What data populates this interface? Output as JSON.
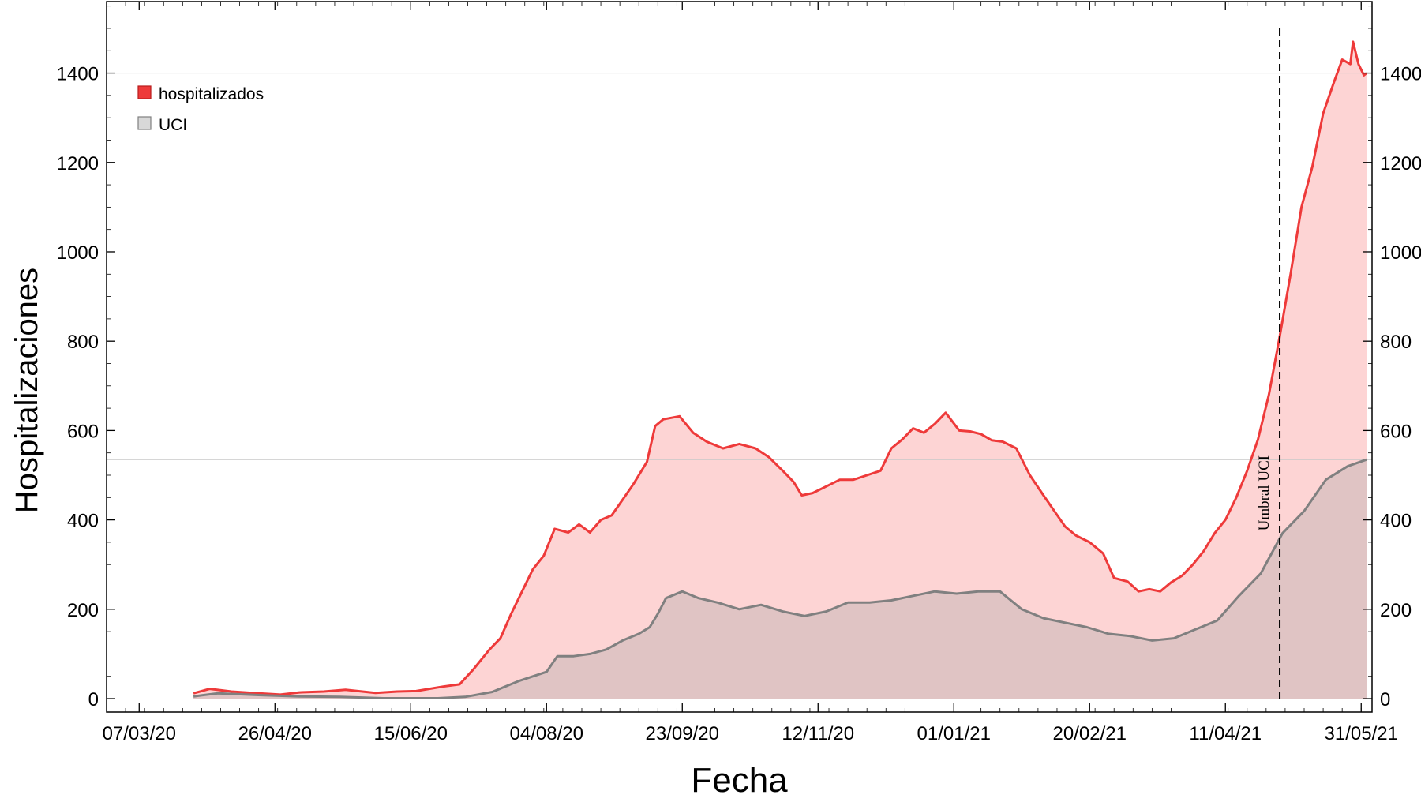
{
  "chart_data": {
    "type": "area",
    "xlabel": "Fecha",
    "ylabel": "Hospitalizaciones",
    "x_axis": {
      "kind": "date",
      "domain": [
        "2020-02-24",
        "2021-06-04"
      ],
      "ticks": [
        "07/03/20",
        "26/04/20",
        "15/06/20",
        "04/08/20",
        "23/09/20",
        "12/11/20",
        "01/01/21",
        "20/02/21",
        "11/04/21",
        "31/05/21"
      ]
    },
    "y_axis": {
      "range": [
        -30,
        1560
      ],
      "ticks": [
        "0",
        "200",
        "400",
        "600",
        "800",
        "1000",
        "1200",
        "1400"
      ],
      "mirrored_right": true
    },
    "grid": false,
    "reference_lines": [
      1400,
      535
    ],
    "legend": {
      "position": "top-left",
      "entries": [
        "hospitalizados",
        "UCI"
      ]
    },
    "annotation": {
      "text": "Umbral UCI",
      "date": "2021-05-01",
      "style": "dashed vertical line"
    },
    "series": [
      {
        "name": "hospitalizados",
        "color": "#ee3a3a",
        "fill": "#fdd4d4",
        "points": [
          [
            "2020-03-27",
            12
          ],
          [
            "2020-04-02",
            22
          ],
          [
            "2020-04-10",
            16
          ],
          [
            "2020-04-20",
            12
          ],
          [
            "2020-04-28",
            9
          ],
          [
            "2020-05-05",
            14
          ],
          [
            "2020-05-14",
            16
          ],
          [
            "2020-05-22",
            20
          ],
          [
            "2020-06-02",
            13
          ],
          [
            "2020-06-10",
            16
          ],
          [
            "2020-06-17",
            17
          ],
          [
            "2020-06-27",
            27
          ],
          [
            "2020-07-03",
            32
          ],
          [
            "2020-07-08",
            65
          ],
          [
            "2020-07-14",
            110
          ],
          [
            "2020-07-18",
            135
          ],
          [
            "2020-07-22",
            190
          ],
          [
            "2020-07-26",
            240
          ],
          [
            "2020-07-30",
            290
          ],
          [
            "2020-08-03",
            320
          ],
          [
            "2020-08-07",
            380
          ],
          [
            "2020-08-12",
            372
          ],
          [
            "2020-08-16",
            390
          ],
          [
            "2020-08-20",
            372
          ],
          [
            "2020-08-24",
            400
          ],
          [
            "2020-08-28",
            410
          ],
          [
            "2020-09-01",
            445
          ],
          [
            "2020-09-05",
            480
          ],
          [
            "2020-09-10",
            530
          ],
          [
            "2020-09-13",
            610
          ],
          [
            "2020-09-16",
            625
          ],
          [
            "2020-09-22",
            632
          ],
          [
            "2020-09-27",
            595
          ],
          [
            "2020-10-02",
            575
          ],
          [
            "2020-10-08",
            560
          ],
          [
            "2020-10-14",
            570
          ],
          [
            "2020-10-20",
            560
          ],
          [
            "2020-10-25",
            540
          ],
          [
            "2020-10-30",
            510
          ],
          [
            "2020-11-03",
            485
          ],
          [
            "2020-11-06",
            455
          ],
          [
            "2020-11-10",
            460
          ],
          [
            "2020-11-15",
            475
          ],
          [
            "2020-11-20",
            490
          ],
          [
            "2020-11-25",
            490
          ],
          [
            "2020-11-30",
            500
          ],
          [
            "2020-12-05",
            510
          ],
          [
            "2020-12-09",
            560
          ],
          [
            "2020-12-13",
            580
          ],
          [
            "2020-12-17",
            605
          ],
          [
            "2020-12-21",
            595
          ],
          [
            "2020-12-25",
            615
          ],
          [
            "2020-12-29",
            640
          ],
          [
            "2021-01-03",
            600
          ],
          [
            "2021-01-07",
            598
          ],
          [
            "2021-01-11",
            592
          ],
          [
            "2021-01-15",
            578
          ],
          [
            "2021-01-19",
            575
          ],
          [
            "2021-01-24",
            560
          ],
          [
            "2021-01-29",
            500
          ],
          [
            "2021-02-03",
            455
          ],
          [
            "2021-02-07",
            420
          ],
          [
            "2021-02-11",
            385
          ],
          [
            "2021-02-15",
            365
          ],
          [
            "2021-02-20",
            350
          ],
          [
            "2021-02-25",
            325
          ],
          [
            "2021-03-01",
            270
          ],
          [
            "2021-03-06",
            262
          ],
          [
            "2021-03-10",
            240
          ],
          [
            "2021-03-14",
            245
          ],
          [
            "2021-03-18",
            240
          ],
          [
            "2021-03-22",
            260
          ],
          [
            "2021-03-26",
            275
          ],
          [
            "2021-03-30",
            300
          ],
          [
            "2021-04-03",
            330
          ],
          [
            "2021-04-07",
            370
          ],
          [
            "2021-04-11",
            400
          ],
          [
            "2021-04-15",
            450
          ],
          [
            "2021-04-19",
            510
          ],
          [
            "2021-04-23",
            580
          ],
          [
            "2021-04-27",
            680
          ],
          [
            "2021-05-01",
            810
          ],
          [
            "2021-05-05",
            950
          ],
          [
            "2021-05-09",
            1100
          ],
          [
            "2021-05-13",
            1190
          ],
          [
            "2021-05-17",
            1310
          ],
          [
            "2021-05-21",
            1380
          ],
          [
            "2021-05-24",
            1430
          ],
          [
            "2021-05-27",
            1420
          ],
          [
            "2021-05-28",
            1470
          ],
          [
            "2021-05-30",
            1420
          ],
          [
            "2021-06-01",
            1395
          ],
          [
            "2021-06-02",
            1400
          ]
        ]
      },
      {
        "name": "UCI",
        "color": "#808080",
        "fill": "#e0c4c4",
        "points": [
          [
            "2020-03-27",
            5
          ],
          [
            "2020-04-05",
            12
          ],
          [
            "2020-04-20",
            8
          ],
          [
            "2020-05-05",
            5
          ],
          [
            "2020-05-20",
            4
          ],
          [
            "2020-06-05",
            1
          ],
          [
            "2020-06-25",
            1
          ],
          [
            "2020-07-05",
            4
          ],
          [
            "2020-07-15",
            15
          ],
          [
            "2020-07-25",
            40
          ],
          [
            "2020-08-04",
            60
          ],
          [
            "2020-08-08",
            95
          ],
          [
            "2020-08-14",
            95
          ],
          [
            "2020-08-20",
            100
          ],
          [
            "2020-08-26",
            110
          ],
          [
            "2020-09-01",
            130
          ],
          [
            "2020-09-07",
            145
          ],
          [
            "2020-09-11",
            160
          ],
          [
            "2020-09-14",
            190
          ],
          [
            "2020-09-17",
            225
          ],
          [
            "2020-09-23",
            240
          ],
          [
            "2020-09-29",
            225
          ],
          [
            "2020-10-06",
            215
          ],
          [
            "2020-10-14",
            200
          ],
          [
            "2020-10-22",
            210
          ],
          [
            "2020-10-30",
            195
          ],
          [
            "2020-11-07",
            185
          ],
          [
            "2020-11-15",
            195
          ],
          [
            "2020-11-23",
            215
          ],
          [
            "2020-12-01",
            215
          ],
          [
            "2020-12-09",
            220
          ],
          [
            "2020-12-17",
            230
          ],
          [
            "2020-12-25",
            240
          ],
          [
            "2021-01-02",
            235
          ],
          [
            "2021-01-10",
            240
          ],
          [
            "2021-01-18",
            240
          ],
          [
            "2021-01-26",
            200
          ],
          [
            "2021-02-03",
            180
          ],
          [
            "2021-02-11",
            170
          ],
          [
            "2021-02-19",
            160
          ],
          [
            "2021-02-27",
            145
          ],
          [
            "2021-03-07",
            140
          ],
          [
            "2021-03-15",
            130
          ],
          [
            "2021-03-23",
            135
          ],
          [
            "2021-03-31",
            155
          ],
          [
            "2021-04-08",
            175
          ],
          [
            "2021-04-16",
            230
          ],
          [
            "2021-04-24",
            280
          ],
          [
            "2021-05-02",
            370
          ],
          [
            "2021-05-10",
            420
          ],
          [
            "2021-05-18",
            490
          ],
          [
            "2021-05-26",
            520
          ],
          [
            "2021-06-02",
            535
          ]
        ]
      }
    ]
  }
}
